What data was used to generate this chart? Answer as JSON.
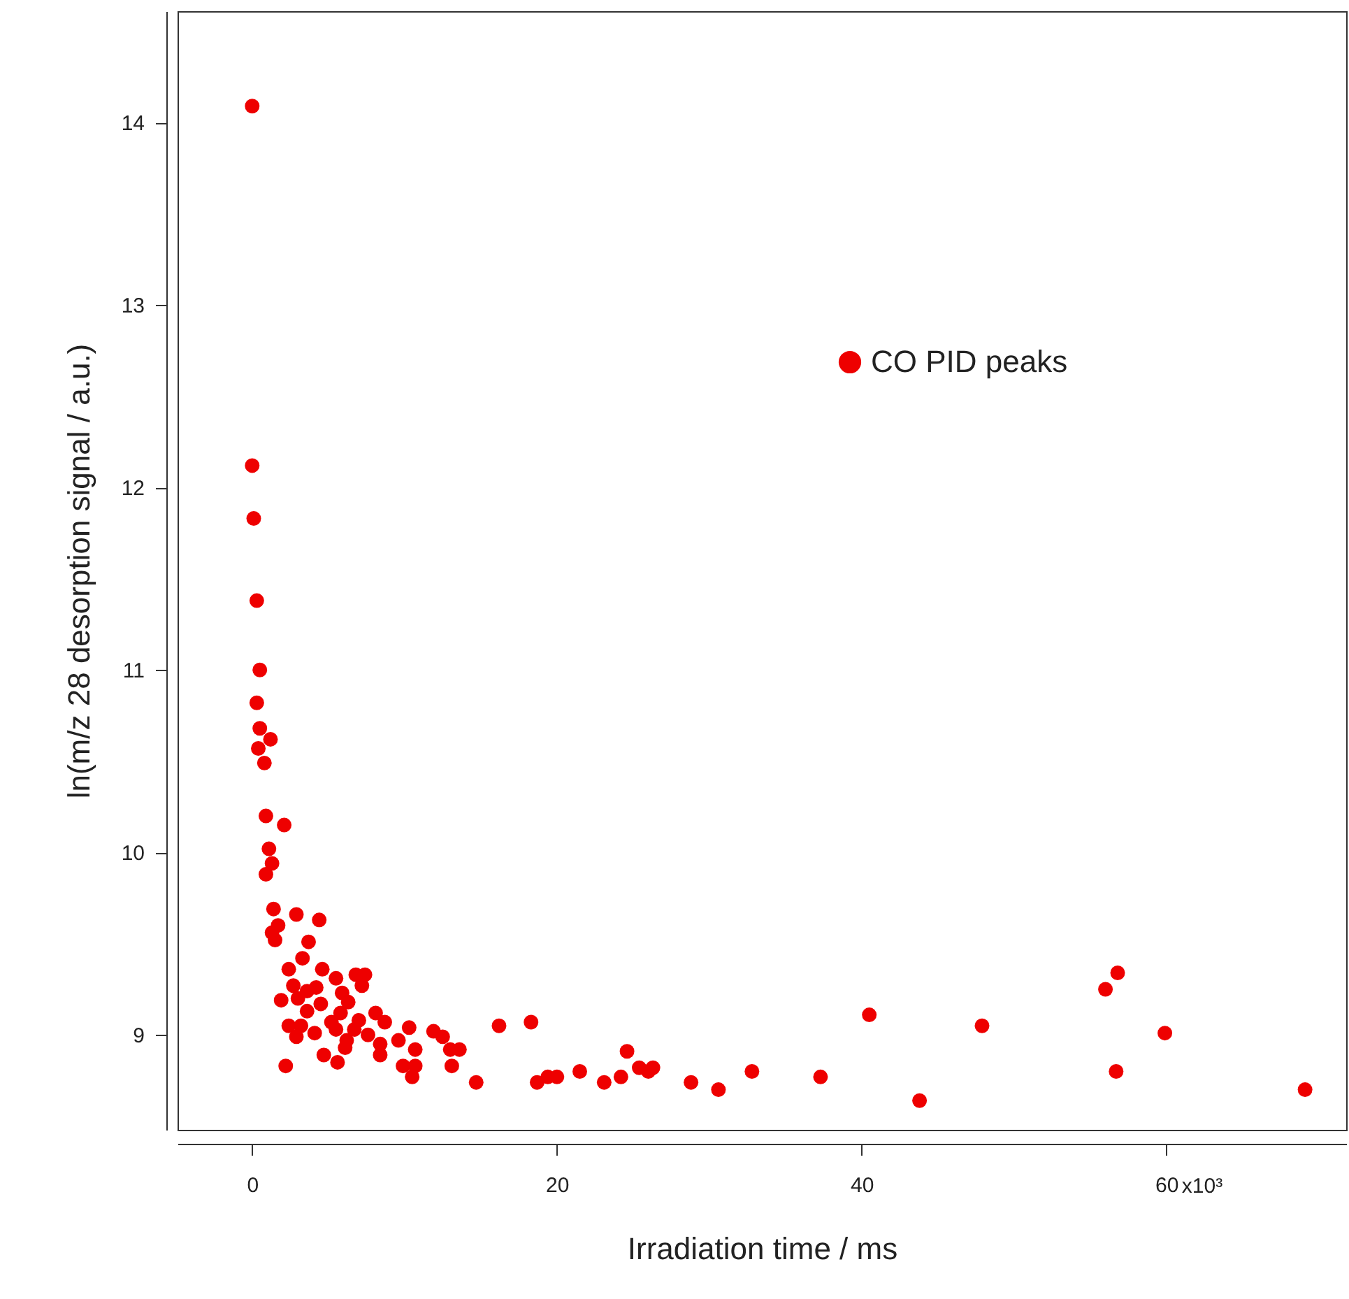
{
  "chart_data": {
    "type": "scatter",
    "xlabel": "Irradiation time / ms",
    "ylabel": "ln(m/z 28 desorption signal / a.u.)",
    "xlim": [
      -4.9,
      71.8
    ],
    "ylim": [
      8.48,
      14.61
    ],
    "xticks": [
      0,
      20,
      40,
      60
    ],
    "annotations": [
      "x10³"
    ],
    "yticks": [
      9,
      10,
      11,
      12,
      13,
      14
    ],
    "grid": false,
    "legend": "top right",
    "marker": "circle",
    "series": [
      {
        "name": "CO PID peaks",
        "color": "#ee0000",
        "x": [
          0,
          0,
          0.1,
          0.3,
          0.5,
          0.3,
          0.5,
          1.2,
          0.4,
          0.8,
          0.9,
          2.1,
          1.1,
          1.3,
          0.9,
          1.4,
          2.9,
          4.4,
          1.7,
          1.3,
          1.5,
          3.7,
          3.3,
          2.4,
          4.6,
          6.8,
          7.4,
          5.5,
          2.7,
          7.2,
          4.2,
          3.6,
          5.9,
          3.0,
          1.9,
          4.5,
          6.3,
          3.6,
          5.8,
          8.1,
          2.4,
          3.2,
          5.2,
          7.0,
          8.7,
          4.1,
          5.5,
          6.7,
          7.6,
          10.3,
          11.9,
          12.5,
          16.2,
          2.9,
          6.2,
          9.6,
          8.4,
          10.7,
          13.0,
          13.6,
          6.1,
          8.4,
          4.7,
          5.6,
          2.2,
          9.9,
          13.1,
          10.7,
          10.5,
          14.7,
          18.3,
          18.7,
          19.4,
          20.0,
          21.5,
          23.1,
          24.2,
          24.6,
          25.4,
          26.3,
          26.0,
          28.8,
          30.6,
          32.8,
          37.3,
          40.5,
          43.8,
          47.9,
          56.0,
          56.8,
          56.7,
          59.9,
          69.1
        ],
        "values": [
          14.09,
          12.12,
          11.83,
          11.38,
          11.0,
          10.82,
          10.68,
          10.62,
          10.57,
          10.49,
          10.2,
          10.15,
          10.02,
          9.94,
          9.88,
          9.69,
          9.66,
          9.63,
          9.6,
          9.56,
          9.52,
          9.51,
          9.42,
          9.36,
          9.36,
          9.33,
          9.33,
          9.31,
          9.27,
          9.27,
          9.26,
          9.24,
          9.23,
          9.2,
          9.19,
          9.17,
          9.18,
          9.13,
          9.12,
          9.12,
          9.05,
          9.05,
          9.07,
          9.08,
          9.07,
          9.01,
          9.03,
          9.03,
          9.0,
          9.04,
          9.02,
          8.99,
          9.05,
          8.99,
          8.97,
          8.97,
          8.95,
          8.92,
          8.92,
          8.92,
          8.93,
          8.89,
          8.89,
          8.85,
          8.83,
          8.83,
          8.83,
          8.83,
          8.77,
          8.74,
          9.07,
          8.74,
          8.77,
          8.77,
          8.8,
          8.74,
          8.77,
          8.91,
          8.82,
          8.82,
          8.8,
          8.74,
          8.7,
          8.8,
          8.77,
          9.11,
          8.64,
          9.05,
          9.25,
          9.34,
          8.8,
          9.01,
          8.7
        ]
      }
    ]
  }
}
